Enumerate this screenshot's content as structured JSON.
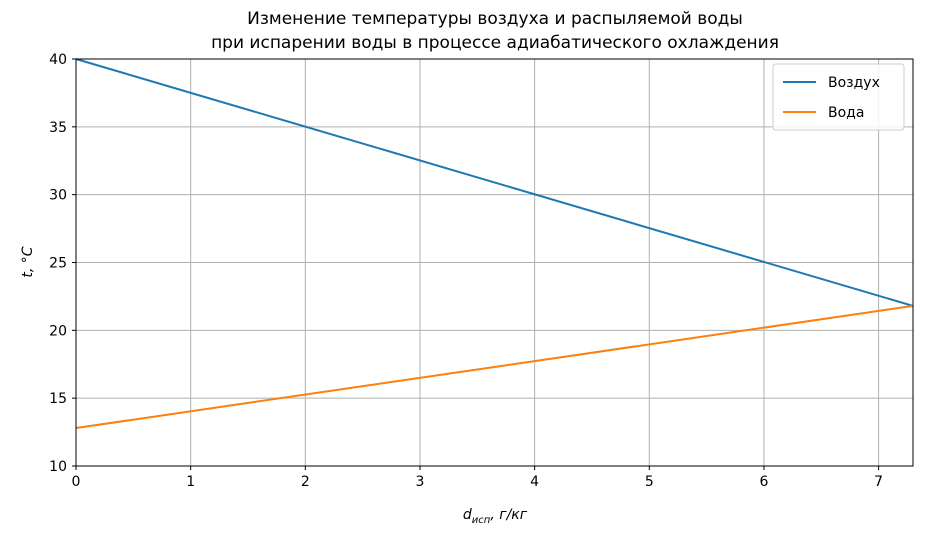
{
  "chart_data": {
    "type": "line",
    "title_lines": [
      "Изменение температуры воздуха и распыляемой воды",
      "при испарении воды в процессе адиабатического охлаждения"
    ],
    "xlabel_main": "d",
    "xlabel_sub": "исп",
    "xlabel_units": ", г/кг",
    "ylabel_var": "t",
    "ylabel_units": ", °C",
    "xlim": [
      0,
      7.3
    ],
    "ylim": [
      10,
      40
    ],
    "x_ticks": [
      0,
      1,
      2,
      3,
      4,
      5,
      6,
      7
    ],
    "y_ticks": [
      10,
      15,
      20,
      25,
      30,
      35,
      40
    ],
    "grid": true,
    "legend_position": "top-right",
    "series": [
      {
        "name": "Воздух",
        "color": "#1f77b4",
        "x": [
          0,
          7.3
        ],
        "y": [
          40,
          21.8
        ]
      },
      {
        "name": "Вода",
        "color": "#ff7f0e",
        "x": [
          0,
          7.3
        ],
        "y": [
          12.8,
          21.8
        ]
      }
    ]
  }
}
